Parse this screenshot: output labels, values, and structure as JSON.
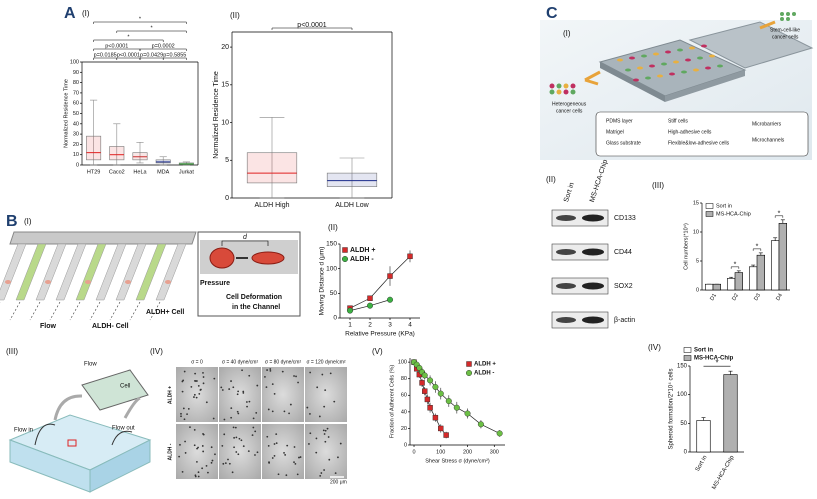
{
  "labels": {
    "A": "A",
    "B": "B",
    "C": "C"
  },
  "schematics": {
    "b1": {
      "sublabel": "(I)",
      "d": "d",
      "pressure": "Pressure",
      "deformation": [
        "Cell Deformation",
        "in the Channel"
      ],
      "flow": "Flow",
      "aldh_minus": "ALDH- Cell",
      "aldh_plus": "ALDH+ Cell"
    },
    "b3": {
      "sublabel": "(III)",
      "flow": "Flow",
      "cell": "Cell",
      "flow_in": "Flow in",
      "flow_out": "Flow out"
    },
    "b4": {
      "sublabel": "(IV)",
      "columns": [
        "σ = 0",
        "σ = 40 dyne/cm²",
        "σ = 80 dyne/cm²",
        "σ = 120 dyne/cm²"
      ],
      "rows": [
        "ALDH +",
        "ALDH -"
      ],
      "scale_bar": "200 μm"
    },
    "c1": {
      "sublabel": "(I)",
      "output": [
        "Stem-cell-like",
        "cancer cells"
      ],
      "input": [
        "Heterogeneous",
        "cancer cells"
      ],
      "legend": [
        "PDMS layer",
        "Matrigel",
        "Glass substrate",
        "Stiff cells",
        "High-adhesive cells",
        "Flexible&low-adhesive cells",
        "Microbarriers",
        "Microchannels"
      ]
    },
    "c2": {
      "sublabel": "(II)",
      "lanes": [
        "Sort in",
        "MS-HCA-Chip"
      ],
      "proteins": [
        "CD133",
        "CD44",
        "SOX2",
        "β-actin"
      ]
    }
  },
  "charts": [
    {
      "type": "box",
      "sublabel": "(I)",
      "ylabel": "Normalized Residence Time",
      "categories": [
        "HT29",
        "Caco2",
        "HeLa",
        "MDA",
        "Jurkat"
      ],
      "colors": [
        "#e02020",
        "#e02020",
        "#c83030",
        "#1a2a8a",
        "#2a9a2a"
      ],
      "boxes": [
        {
          "whislo": 0,
          "q1": 5,
          "med": 12,
          "q3": 28,
          "whishi": 63
        },
        {
          "whislo": 0,
          "q1": 5,
          "med": 10,
          "q3": 18,
          "whishi": 40
        },
        {
          "whislo": 2,
          "q1": 5,
          "med": 8,
          "q3": 12,
          "whishi": 22
        },
        {
          "whislo": 0,
          "q1": 2,
          "med": 3,
          "q3": 5,
          "whishi": 8
        },
        {
          "whislo": 0,
          "q1": 0.5,
          "med": 1,
          "q3": 2,
          "whishi": 3
        }
      ],
      "ylim": [
        0,
        100
      ],
      "yticks": [
        0,
        10,
        20,
        30,
        40,
        50,
        60,
        70,
        80,
        90,
        100
      ],
      "brackets": [
        {
          "from": 0,
          "to": 1,
          "label": "p=0.0185"
        },
        {
          "from": 1,
          "to": 2,
          "label": "p<0.0001"
        },
        {
          "from": 2,
          "to": 3,
          "label": "p=0.0429"
        },
        {
          "from": 3,
          "to": 4,
          "label": "p=0.5855"
        },
        {
          "from": 0,
          "to": 2,
          "label": "p<0.0001"
        },
        {
          "from": 2,
          "to": 4,
          "label": "p=0.0002"
        },
        {
          "from": 0,
          "to": 3,
          "label": "*"
        },
        {
          "from": 1,
          "to": 4,
          "label": "*"
        },
        {
          "from": 0,
          "to": 4,
          "label": "*"
        }
      ]
    },
    {
      "type": "box",
      "sublabel": "(II)",
      "ylabel": "Normalized Residence Time",
      "categories": [
        "ALDH High",
        "ALDH Low"
      ],
      "colors": [
        "#e02020",
        "#1a2a8a"
      ],
      "boxes": [
        {
          "whislo": 0,
          "q1": 2,
          "med": 3.3,
          "q3": 6,
          "whishi": 10.7
        },
        {
          "whislo": 0,
          "q1": 1.5,
          "med": 2.3,
          "q3": 3.3,
          "whishi": 5.3
        }
      ],
      "ylim": [
        0,
        22
      ],
      "yticks": [
        0,
        5,
        10,
        15,
        20
      ],
      "brackets": [
        {
          "from": 0,
          "to": 1,
          "label": "p<0.0001"
        }
      ]
    },
    {
      "type": "line",
      "sublabel": "(II)",
      "xlabel": "Relative Pressure (KPa)",
      "ylabel": "Moving Distance d (μm)",
      "x": [
        1,
        2,
        3,
        4
      ],
      "xlim": [
        0.5,
        4.5
      ],
      "xticks": [
        1,
        2,
        3,
        4
      ],
      "ylim": [
        0,
        150
      ],
      "yticks": [
        0,
        50,
        100,
        150
      ],
      "legend": "upper left",
      "series": [
        {
          "name": "ALDH +",
          "color": "#d42a2a",
          "marker": "square",
          "values": [
            20,
            40,
            85,
            125
          ],
          "errors": [
            3,
            4,
            20,
            12
          ]
        },
        {
          "name": "ALDH -",
          "color": "#3cb043",
          "marker": "circle",
          "values": [
            15,
            25,
            37,
            null
          ],
          "errors": [
            3,
            3,
            3,
            null
          ]
        }
      ]
    },
    {
      "type": "line",
      "sublabel": "(V)",
      "xlabel": "Shear Stress σ (dyne/cm²)",
      "ylabel": "Fraction of Adherent Cells (%)",
      "xlim": [
        -15,
        340
      ],
      "xticks": [
        0,
        100,
        200,
        300
      ],
      "ylim": [
        0,
        105
      ],
      "yticks": [
        0,
        20,
        40,
        60,
        80,
        100
      ],
      "legend": "upper right",
      "series": [
        {
          "name": "ALDH +",
          "color": "#d42a2a",
          "marker": "square",
          "x": [
            0,
            10,
            20,
            30,
            40,
            50,
            60,
            80,
            100,
            120
          ],
          "values": [
            100,
            92,
            85,
            75,
            65,
            55,
            45,
            33,
            20,
            12
          ],
          "errors": [
            0,
            3,
            4,
            5,
            5,
            6,
            6,
            5,
            5,
            4
          ]
        },
        {
          "name": "ALDH -",
          "color": "#6cbf45",
          "marker": "circle",
          "x": [
            0,
            10,
            20,
            30,
            40,
            60,
            80,
            100,
            130,
            160,
            200,
            250,
            320
          ],
          "values": [
            100,
            97,
            93,
            88,
            84,
            78,
            70,
            62,
            53,
            45,
            38,
            25,
            14
          ],
          "errors": [
            0,
            3,
            4,
            5,
            5,
            6,
            7,
            7,
            7,
            7,
            6,
            5,
            4
          ]
        }
      ]
    },
    {
      "type": "bar",
      "sublabel": "(III)",
      "ylabel": "Cell numbers(*10⁴)",
      "categories": [
        "D1",
        "D2",
        "D3",
        "D4"
      ],
      "ylim": [
        0,
        15
      ],
      "yticks": [
        0,
        5,
        10,
        15
      ],
      "legend": "upper left",
      "series": [
        {
          "name": "Sort in",
          "color": "#ffffff",
          "values": [
            1,
            2,
            4,
            8.5
          ],
          "errors": [
            0,
            0.2,
            0.3,
            0.5
          ]
        },
        {
          "name": "MS-HCA-Chip",
          "color": "#b0b0b0",
          "values": [
            1,
            3,
            6,
            11.5
          ],
          "errors": [
            0,
            0.3,
            0.4,
            0.6
          ]
        }
      ],
      "annotations": [
        {
          "category": 1,
          "text": "*"
        },
        {
          "category": 2,
          "text": "*"
        },
        {
          "category": 3,
          "text": "*"
        }
      ]
    },
    {
      "type": "bar",
      "sublabel": "(IV)",
      "ylabel": "Spheroid formation/2*10⁴ cells",
      "categories": [
        "Sort in",
        "MS-HCA-Chip"
      ],
      "values": [
        55,
        135
      ],
      "errors": [
        5,
        6
      ],
      "colors": [
        "#ffffff",
        "#b0b0b0"
      ],
      "ylim": [
        0,
        150
      ],
      "yticks": [
        0,
        50,
        100,
        150
      ],
      "legend": "above",
      "annotations": [
        {
          "from": 0,
          "to": 1,
          "text": "*"
        }
      ]
    }
  ]
}
